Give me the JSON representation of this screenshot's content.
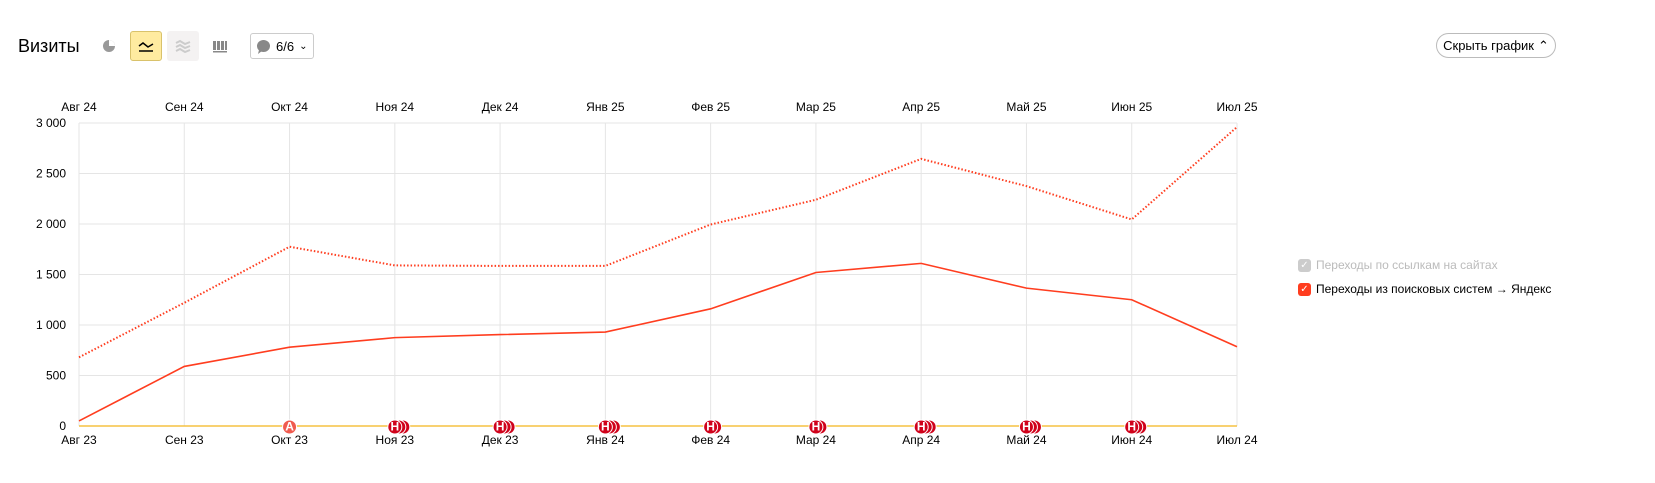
{
  "header": {
    "title": "Визиты",
    "annotations_label": "6/6",
    "hide_chart_label": "Скрыть график"
  },
  "toolbar": {
    "icons": [
      "pie-chart-icon",
      "line-chart-icon",
      "area-chart-icon",
      "bar-chart-icon",
      "comment-icon"
    ],
    "selected": "line-chart-icon"
  },
  "colors": {
    "series": "#ff3d1f",
    "annotation": "#d0021b",
    "annotation_a": "#f05b4f",
    "zero_line": "#f5c242",
    "grid": "#e5e5e5"
  },
  "chart_data": {
    "type": "line",
    "grid": true,
    "legend_placement": "right",
    "ylim": [
      0,
      3000
    ],
    "yticks": [
      "0",
      "500",
      "1 000",
      "1 500",
      "2 000",
      "2 500",
      "3 000"
    ],
    "ytick_values": [
      0,
      500,
      1000,
      1500,
      2000,
      2500,
      3000
    ],
    "x_bottom": [
      "Авг 23",
      "Сен 23",
      "Окт 23",
      "Ноя 23",
      "Дек 23",
      "Янв 24",
      "Фев 24",
      "Мар 24",
      "Апр 24",
      "Май 24",
      "Июн 24",
      "Июл 24"
    ],
    "x_top": [
      "Авг 24",
      "Сен 24",
      "Окт 24",
      "Ноя 24",
      "Дек 24",
      "Янв 25",
      "Фев 25",
      "Мар 25",
      "Апр 25",
      "Май 25",
      "Июн 25",
      "Июл 25"
    ],
    "series": [
      {
        "style": "solid",
        "axis": "bottom",
        "values": [
          50,
          590,
          780,
          875,
          905,
          930,
          1160,
          1520,
          1610,
          1365,
          1250,
          785
        ]
      },
      {
        "style": "dotted",
        "axis": "top",
        "values": [
          680,
          1220,
          1775,
          1590,
          1585,
          1585,
          1995,
          2240,
          2645,
          2375,
          2045,
          2960
        ]
      }
    ],
    "annotations": [
      {
        "index": 2,
        "label": "А",
        "count": 1
      },
      {
        "index": 3,
        "label": "Н",
        "count": 3
      },
      {
        "index": 4,
        "label": "Н",
        "count": 3
      },
      {
        "index": 5,
        "label": "Н",
        "count": 3
      },
      {
        "index": 6,
        "label": "Н",
        "count": 2
      },
      {
        "index": 7,
        "label": "Н",
        "count": 2
      },
      {
        "index": 8,
        "label": "Н",
        "count": 3
      },
      {
        "index": 9,
        "label": "Н",
        "count": 3
      },
      {
        "index": 10,
        "label": "Н",
        "count": 3
      }
    ],
    "legend": [
      {
        "label": "Переходы по ссылкам на сайтах",
        "checked": true,
        "disabled": true
      },
      {
        "label": "Переходы из поисковых систем → Яндекс",
        "checked": true,
        "disabled": false
      }
    ]
  }
}
